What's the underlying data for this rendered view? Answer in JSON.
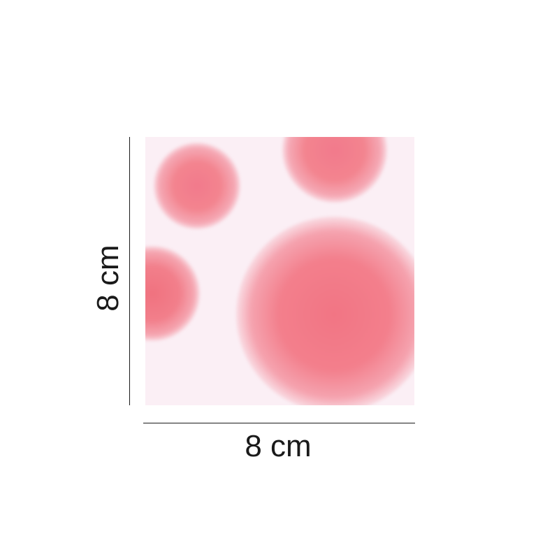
{
  "dimensions": {
    "width_label": "8 cm",
    "height_label": "8 cm"
  },
  "product": {
    "colors": {
      "background": "#fbeff5",
      "dots": "#f27a8c"
    }
  }
}
